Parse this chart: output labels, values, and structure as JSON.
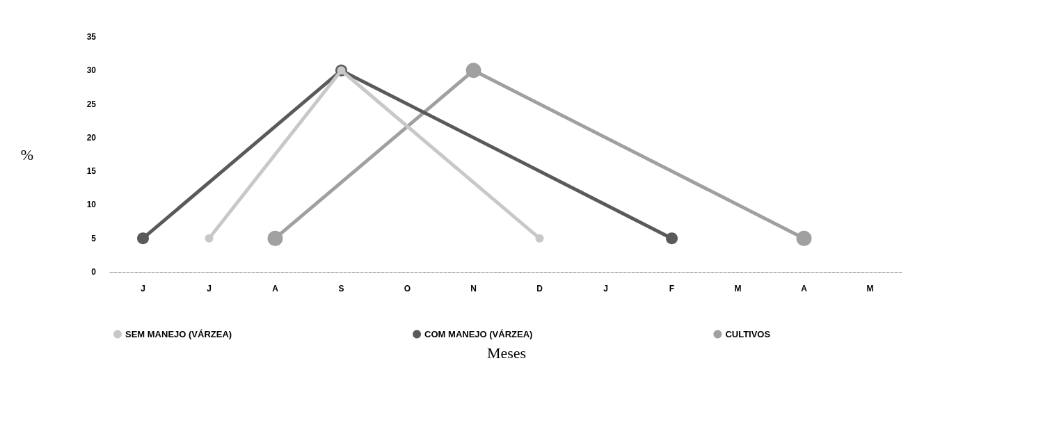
{
  "chart_data": {
    "type": "line",
    "xlabel": "Meses",
    "ylabel": "%",
    "categories": [
      "J",
      "J",
      "A",
      "S",
      "O",
      "N",
      "D",
      "J",
      "F",
      "M",
      "A",
      "M"
    ],
    "series": [
      {
        "name": "SEM MANEJO (VÁRZEA)",
        "color": "#c8c8c8",
        "values": [
          null,
          5,
          null,
          30,
          null,
          null,
          5,
          null,
          null,
          null,
          null,
          null
        ]
      },
      {
        "name": "COM MANEJO (VÁRZEA)",
        "color": "#5a5a5a",
        "values": [
          5,
          null,
          null,
          30,
          null,
          null,
          null,
          null,
          5,
          null,
          null,
          null
        ]
      },
      {
        "name": "CULTIVOS",
        "color": "#a0a0a0",
        "values": [
          null,
          null,
          5,
          null,
          null,
          30,
          null,
          null,
          null,
          null,
          5,
          null
        ]
      }
    ],
    "ylim": [
      0,
      35
    ],
    "yticks": [
      0,
      5,
      10,
      15,
      20,
      25,
      30,
      35
    ],
    "grid": false,
    "legend": "bottom",
    "marker": "circle",
    "line_style": "solid"
  }
}
